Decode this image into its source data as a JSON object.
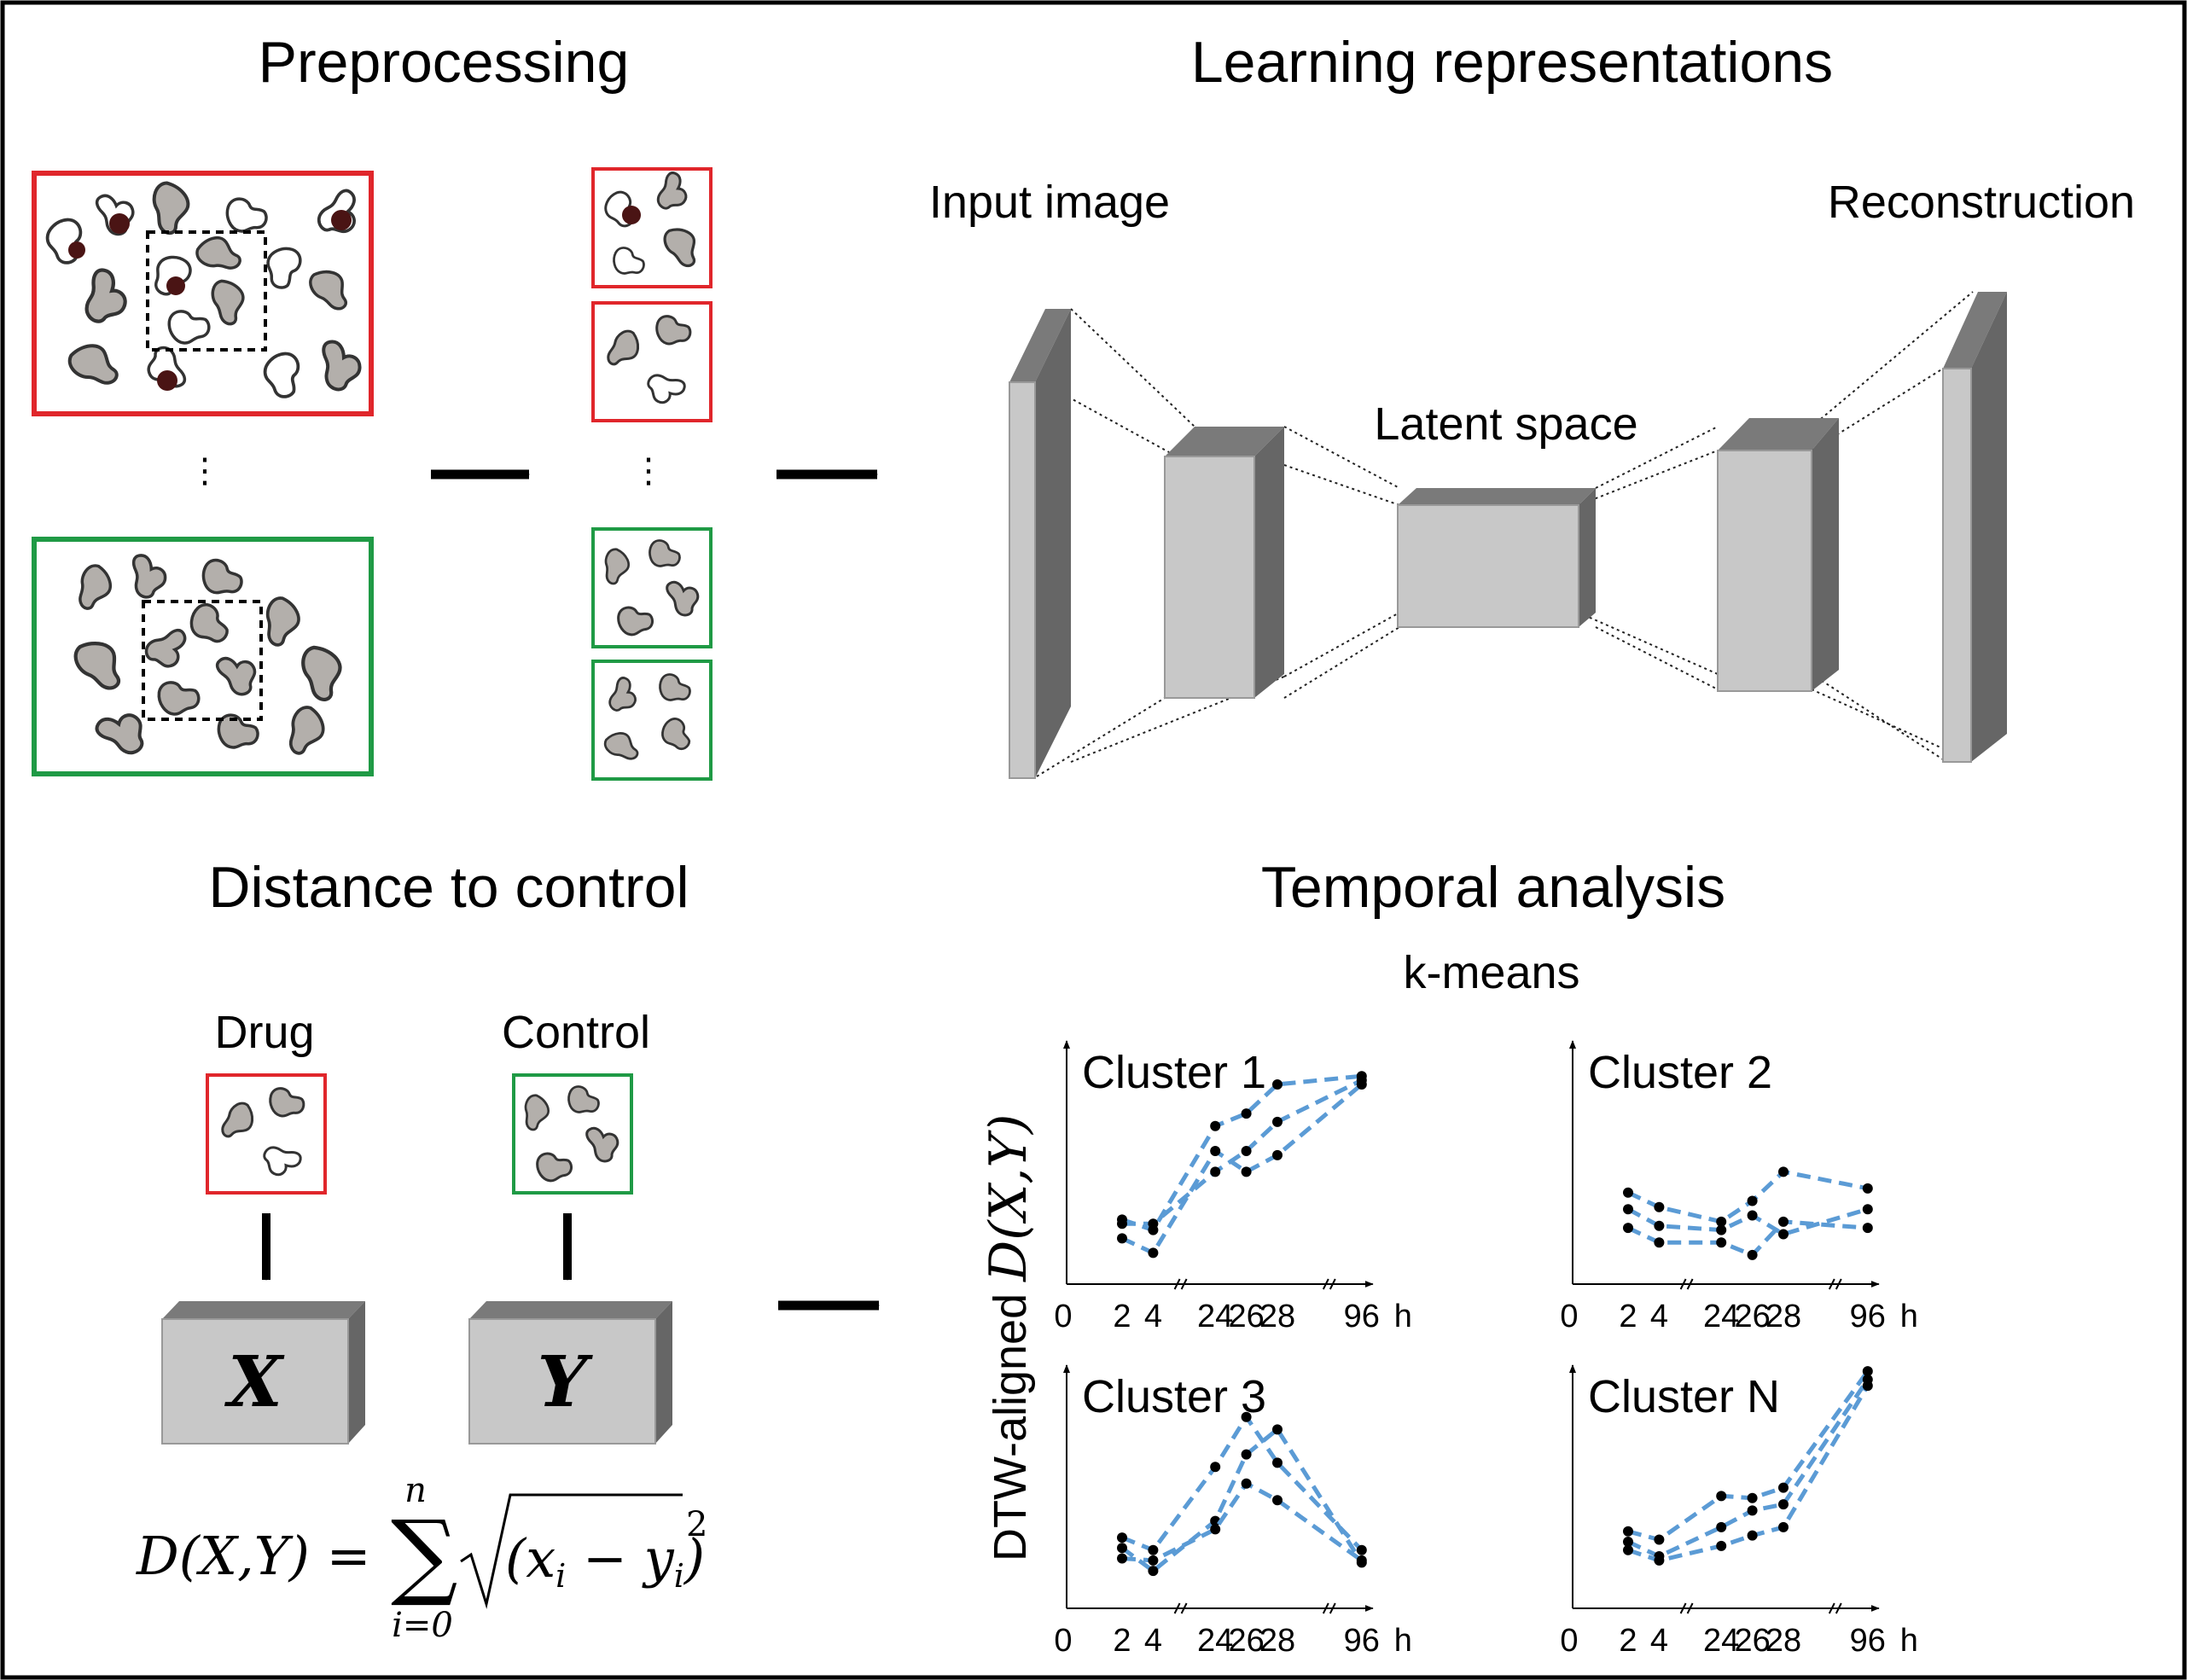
{
  "titles": {
    "preprocessing": "Preprocessing",
    "learning": "Learning representations",
    "distance": "Distance to control",
    "temporal": "Temporal analysis"
  },
  "autoencoder": {
    "input_label": "Input image",
    "reconstruction_label": "Reconstruction",
    "latent_label": "Latent space"
  },
  "distance_panel": {
    "drug_label": "Drug",
    "control_label": "Control",
    "x_symbol": "X",
    "y_symbol": "Y",
    "formula": {
      "lhs": "D(X,Y) =",
      "sum_upper": "n",
      "sum_lower": "i=0",
      "radicand": "(x",
      "sub_i": "i",
      "minus": " − y",
      "close": ")",
      "exponent": "2"
    }
  },
  "colors": {
    "drug_red": "#e0262b",
    "control_green": "#1f9a45",
    "cell_fill": "#b3afab",
    "cell_dark": "#4a1414",
    "line_blue": "#5b9bd5",
    "block_front": "#c8c8c8",
    "block_top": "#7a7a7a",
    "block_side": "#666666"
  },
  "temporal_panel": {
    "method_label": "k-means",
    "y_axis_label": "DTW-aligned",
    "y_axis_math": "D(X,Y)"
  },
  "chart_data": [
    {
      "type": "line",
      "title": "Cluster 1",
      "x": [
        "2",
        "4",
        "24",
        "26",
        "28",
        "96"
      ],
      "tick_labels": [
        "0",
        "2",
        "4",
        "24",
        "26",
        "28",
        "96"
      ],
      "x_unit": "h",
      "series": [
        {
          "values": [
            0.31,
            0.26,
            0.76,
            0.82,
            0.96,
            1.0
          ]
        },
        {
          "values": [
            0.29,
            0.29,
            0.54,
            0.64,
            0.78,
            0.98
          ]
        },
        {
          "values": [
            0.22,
            0.15,
            0.64,
            0.54,
            0.62,
            0.96
          ]
        }
      ]
    },
    {
      "type": "line",
      "title": "Cluster 2",
      "x": [
        "2",
        "4",
        "24",
        "26",
        "28",
        "96"
      ],
      "tick_labels": [
        "0",
        "2",
        "4",
        "24",
        "26",
        "28",
        "96"
      ],
      "x_unit": "h",
      "series": [
        {
          "values": [
            0.44,
            0.37,
            0.3,
            0.4,
            0.54,
            0.46
          ]
        },
        {
          "values": [
            0.36,
            0.28,
            0.26,
            0.33,
            0.24,
            0.36
          ]
        },
        {
          "values": [
            0.27,
            0.2,
            0.2,
            0.14,
            0.3,
            0.27
          ]
        }
      ]
    },
    {
      "type": "line",
      "title": "Cluster 3",
      "x": [
        "2",
        "4",
        "24",
        "26",
        "28",
        "96"
      ],
      "tick_labels": [
        "0",
        "2",
        "4",
        "24",
        "26",
        "28",
        "96"
      ],
      "x_unit": "h",
      "series": [
        {
          "values": [
            0.34,
            0.28,
            0.68,
            0.92,
            0.7,
            0.28
          ]
        },
        {
          "values": [
            0.29,
            0.18,
            0.42,
            0.74,
            0.86,
            0.22
          ]
        },
        {
          "values": [
            0.24,
            0.23,
            0.38,
            0.6,
            0.52,
            0.23
          ]
        }
      ]
    },
    {
      "type": "line",
      "title": "Cluster N",
      "x": [
        "2",
        "4",
        "24",
        "26",
        "28",
        "96"
      ],
      "tick_labels": [
        "0",
        "2",
        "4",
        "24",
        "26",
        "28",
        "96"
      ],
      "x_unit": "h",
      "series": [
        {
          "values": [
            0.37,
            0.33,
            0.54,
            0.53,
            0.58,
            1.14
          ]
        },
        {
          "values": [
            0.32,
            0.25,
            0.39,
            0.47,
            0.5,
            1.1
          ]
        },
        {
          "values": [
            0.28,
            0.23,
            0.3,
            0.35,
            0.39,
            1.07
          ]
        }
      ]
    }
  ]
}
